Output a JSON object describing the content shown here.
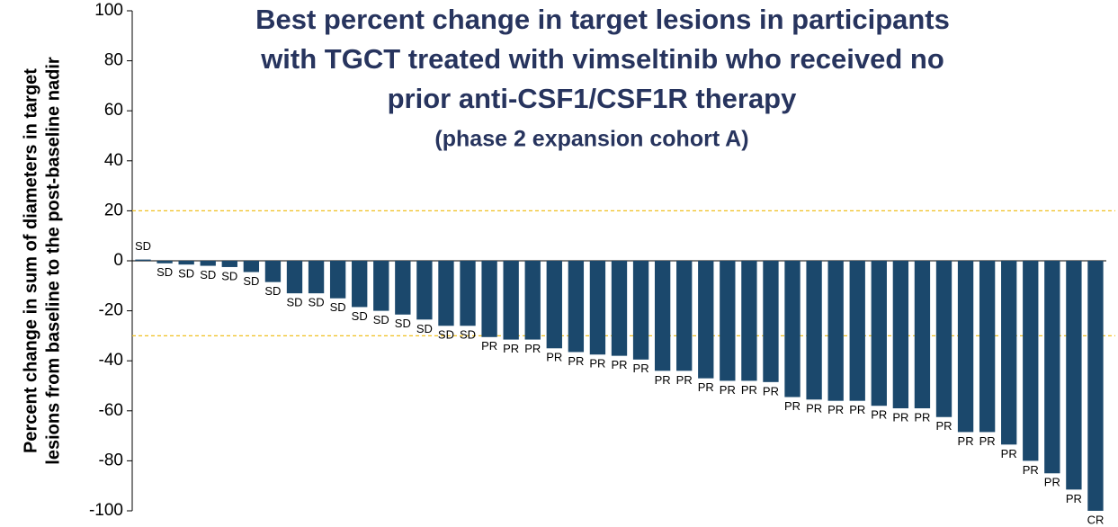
{
  "chart_data": {
    "type": "bar",
    "title": [
      "Best percent change in target lesions in participants",
      "with TGCT treated with vimseltinib who received no",
      "prior anti-CSF1/CSF1R therapy"
    ],
    "subtitle": "(phase 2 expansion cohort A)",
    "ylabel": [
      "Percent change in sum of diameters in target",
      "lesions from baseline to the post-baseline nadir"
    ],
    "values": [
      0.5,
      -1,
      -1.5,
      -2,
      -2.5,
      -4.5,
      -8.5,
      -13,
      -13,
      -15,
      -18.5,
      -20,
      -21.5,
      -23.5,
      -26,
      -26,
      -30.5,
      -31.5,
      -31.5,
      -35,
      -36.5,
      -37.5,
      -38,
      -39.5,
      -44,
      -44,
      -47,
      -48,
      -48,
      -48.5,
      -54.5,
      -55.5,
      -56,
      -56,
      -58,
      -59,
      -59,
      -62.5,
      -68.5,
      -68.5,
      -73.5,
      -80,
      -85,
      -91.5,
      -100
    ],
    "bar_labels": [
      "SD",
      "SD",
      "SD",
      "SD",
      "SD",
      "SD",
      "SD",
      "SD",
      "SD",
      "SD",
      "SD",
      "SD",
      "SD",
      "SD",
      "SD",
      "SD",
      "PR",
      "PR",
      "PR",
      "PR",
      "PR",
      "PR",
      "PR",
      "PR",
      "PR",
      "PR",
      "PR",
      "PR",
      "PR",
      "PR",
      "PR",
      "PR",
      "PR",
      "PR",
      "PR",
      "PR",
      "PR",
      "PR",
      "PR",
      "PR",
      "PR",
      "PR",
      "PR",
      "PR",
      "CR"
    ],
    "color": "#1b486c",
    "ylim": [
      -100,
      100
    ],
    "yticks": [
      -100,
      -80,
      -60,
      -40,
      -20,
      0,
      20,
      40,
      60,
      80,
      100
    ],
    "reference_lines": [
      20,
      -30
    ],
    "reference_color": "#f0c020"
  }
}
